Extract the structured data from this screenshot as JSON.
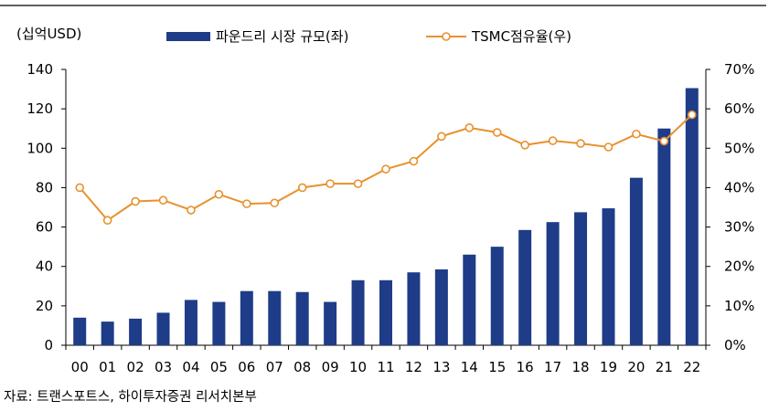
{
  "chart_data": {
    "type": "bar",
    "title": "",
    "unit_label": "(십억USD)",
    "source": "자료: 트랜스포트스, 하이투자증권 리서치본부",
    "categories": [
      "00",
      "01",
      "02",
      "03",
      "04",
      "05",
      "06",
      "07",
      "08",
      "09",
      "10",
      "11",
      "12",
      "13",
      "14",
      "15",
      "16",
      "17",
      "18",
      "19",
      "20",
      "21",
      "22"
    ],
    "series": [
      {
        "name": "파운드리 시장 규모(좌)",
        "type": "bar",
        "axis": "left",
        "values": [
          14,
          12,
          13.5,
          16.5,
          23,
          22,
          27.5,
          27.5,
          27,
          22,
          33,
          33,
          37,
          38.5,
          46,
          50,
          58.5,
          62.5,
          67.5,
          69.5,
          85,
          110,
          130.5
        ]
      },
      {
        "name": "TSMC점유율(우)",
        "type": "line",
        "axis": "right",
        "values": [
          40,
          31.7,
          36.5,
          36.8,
          34.3,
          38.3,
          35.9,
          36.1,
          40,
          41,
          41,
          44.7,
          46.7,
          53,
          55.2,
          54,
          50.8,
          51.9,
          51.2,
          50.3,
          53.6,
          51.8,
          58.5
        ]
      }
    ],
    "y_left": {
      "min": 0,
      "max": 140,
      "ticks": [
        "0",
        "20",
        "40",
        "60",
        "80",
        "100",
        "120",
        "140"
      ]
    },
    "y_right": {
      "min": 0,
      "max": 70,
      "ticks": [
        "0%",
        "10%",
        "20%",
        "30%",
        "40%",
        "50%",
        "60%",
        "70%"
      ]
    },
    "legend_placement": "top-center",
    "colors": {
      "bar": "#1F3C88",
      "line": "#E8912D",
      "marker_fill": "#ffffff",
      "axis": "#000000"
    }
  }
}
